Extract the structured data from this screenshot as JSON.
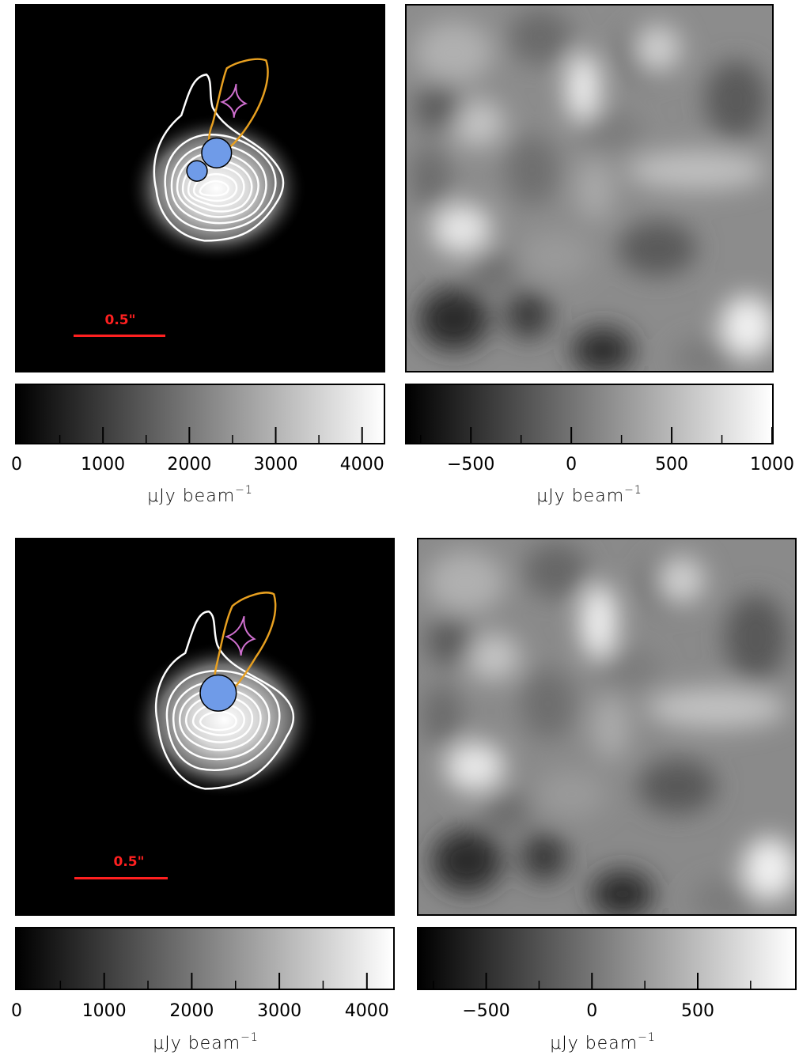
{
  "figure": {
    "rows": [
      {
        "image_panel": {
          "scale_bar_label": "0.5\""
        },
        "residual_panel": {},
        "image_colorbar": {
          "tick_labels": [
            "0",
            "1000",
            "2000",
            "3000",
            "4000"
          ],
          "label": "μJy beam",
          "label_exp": "−1"
        },
        "residual_colorbar": {
          "tick_labels": [
            "−500",
            "0",
            "500",
            "1000"
          ],
          "label": "μJy beam",
          "label_exp": "−1"
        }
      },
      {
        "image_panel": {
          "scale_bar_label": "0.5\""
        },
        "residual_panel": {},
        "image_colorbar": {
          "tick_labels": [
            "0",
            "1000",
            "2000",
            "3000",
            "4000"
          ],
          "label": "μJy beam",
          "label_exp": "−1"
        },
        "residual_colorbar": {
          "tick_labels": [
            "−500",
            "0",
            "500"
          ],
          "label": "μJy beam",
          "label_exp": "−1"
        }
      }
    ]
  },
  "colors": {
    "contour": "#ffffff",
    "source_outline": "#e8a020",
    "caustic": "#d070d0",
    "source_component": "#6f9be8",
    "scale_bar": "#ff2020"
  },
  "chart_data": [
    {
      "type": "heatmap",
      "panel": "top-left model image",
      "colorbar": {
        "range": [
          0,
          4250
        ],
        "unit": "μJy beam⁻¹",
        "major_ticks": [
          0,
          1000,
          2000,
          3000,
          4000
        ],
        "minor_ticks": [
          500,
          1500,
          2500,
          3500
        ]
      },
      "contour_levels": 8,
      "scale_bar": "0.5\""
    },
    {
      "type": "heatmap",
      "panel": "top-right residual",
      "colorbar": {
        "range": [
          -820,
          1000
        ],
        "unit": "μJy beam⁻¹",
        "major_ticks": [
          -500,
          0,
          500,
          1000
        ],
        "minor_ticks": [
          -750,
          -250,
          250,
          750
        ]
      }
    },
    {
      "type": "heatmap",
      "panel": "bottom-left model image",
      "colorbar": {
        "range": [
          0,
          4300
        ],
        "unit": "μJy beam⁻¹",
        "major_ticks": [
          0,
          1000,
          2000,
          3000,
          4000
        ],
        "minor_ticks": [
          500,
          1500,
          2500,
          3500
        ]
      },
      "contour_levels": 7,
      "scale_bar": "0.5\""
    },
    {
      "type": "heatmap",
      "panel": "bottom-right residual",
      "colorbar": {
        "range": [
          -820,
          960
        ],
        "unit": "μJy beam⁻¹",
        "major_ticks": [
          -500,
          0,
          500
        ],
        "minor_ticks": [
          -750,
          -250,
          250,
          750
        ]
      }
    }
  ]
}
